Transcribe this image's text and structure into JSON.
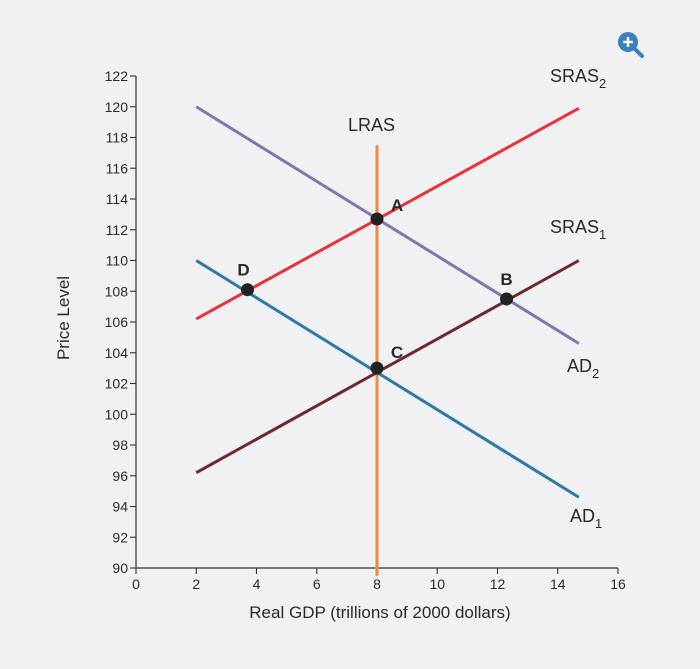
{
  "chart_data": {
    "type": "line",
    "xlabel": "Real GDP (trillions of 2000 dollars)",
    "ylabel": "Price Level",
    "xlim": [
      0,
      16
    ],
    "ylim": [
      90,
      122
    ],
    "x_ticks": [
      0,
      2,
      4,
      6,
      8,
      10,
      12,
      14,
      16
    ],
    "y_ticks": [
      90,
      92,
      94,
      96,
      98,
      100,
      102,
      104,
      106,
      108,
      110,
      112,
      114,
      116,
      118,
      120,
      122
    ],
    "series": [
      {
        "name": "LRAS",
        "sub": "",
        "color": "#f08a3c",
        "points": [
          [
            8,
            117.5
          ],
          [
            8,
            89.5
          ]
        ]
      },
      {
        "name": "SRAS",
        "sub": "2",
        "color": "#e8333a",
        "points": [
          [
            2,
            106.2
          ],
          [
            14.7,
            119.9
          ]
        ]
      },
      {
        "name": "SRAS",
        "sub": "1",
        "color": "#6b2a2c",
        "points": [
          [
            2,
            96.2
          ],
          [
            14.7,
            110
          ]
        ]
      },
      {
        "name": "AD",
        "sub": "2",
        "color": "#7e78b0",
        "points": [
          [
            2,
            120
          ],
          [
            14.7,
            104.6
          ]
        ]
      },
      {
        "name": "AD",
        "sub": "1",
        "color": "#2d79a8",
        "points": [
          [
            2,
            110
          ],
          [
            14.7,
            94.6
          ]
        ]
      }
    ],
    "points": [
      {
        "label": "A",
        "x": 8,
        "y": 112.7
      },
      {
        "label": "B",
        "x": 12.3,
        "y": 107.5
      },
      {
        "label": "C",
        "x": 8,
        "y": 103
      },
      {
        "label": "D",
        "x": 3.7,
        "y": 108.1
      }
    ]
  },
  "icons": {
    "zoom": "zoom-in-icon"
  }
}
